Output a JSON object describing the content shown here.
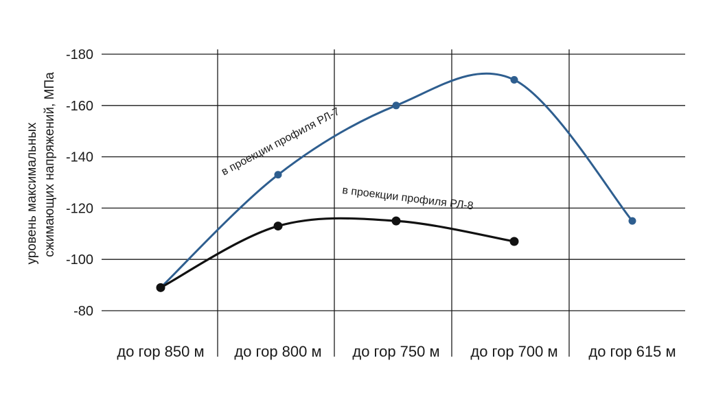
{
  "chart_data": {
    "type": "line",
    "title": "",
    "xlabel": "",
    "ylabel": [
      "уровень максимальных",
      "сжимающих напряжений,  МПа"
    ],
    "categories": [
      "до гор 850 м",
      "до гор 800 м",
      "до гор 750 м",
      "до гор 700 м",
      "до гор 615 м"
    ],
    "y_ticks": [
      "-80",
      "-100",
      "-120",
      "-140",
      "-160",
      "-180"
    ],
    "y_tick_values": [
      80,
      100,
      120,
      140,
      160,
      180
    ],
    "ylim": [
      80,
      180
    ],
    "grid": true,
    "series": [
      {
        "name": "в проекции профиля РЛ-7",
        "color": "#2e5e8f",
        "values": [
          89,
          133,
          160,
          170,
          115
        ]
      },
      {
        "name": "в проекции профиля РЛ-8",
        "color": "#111111",
        "values": [
          89,
          113,
          115,
          107,
          null
        ]
      }
    ]
  }
}
